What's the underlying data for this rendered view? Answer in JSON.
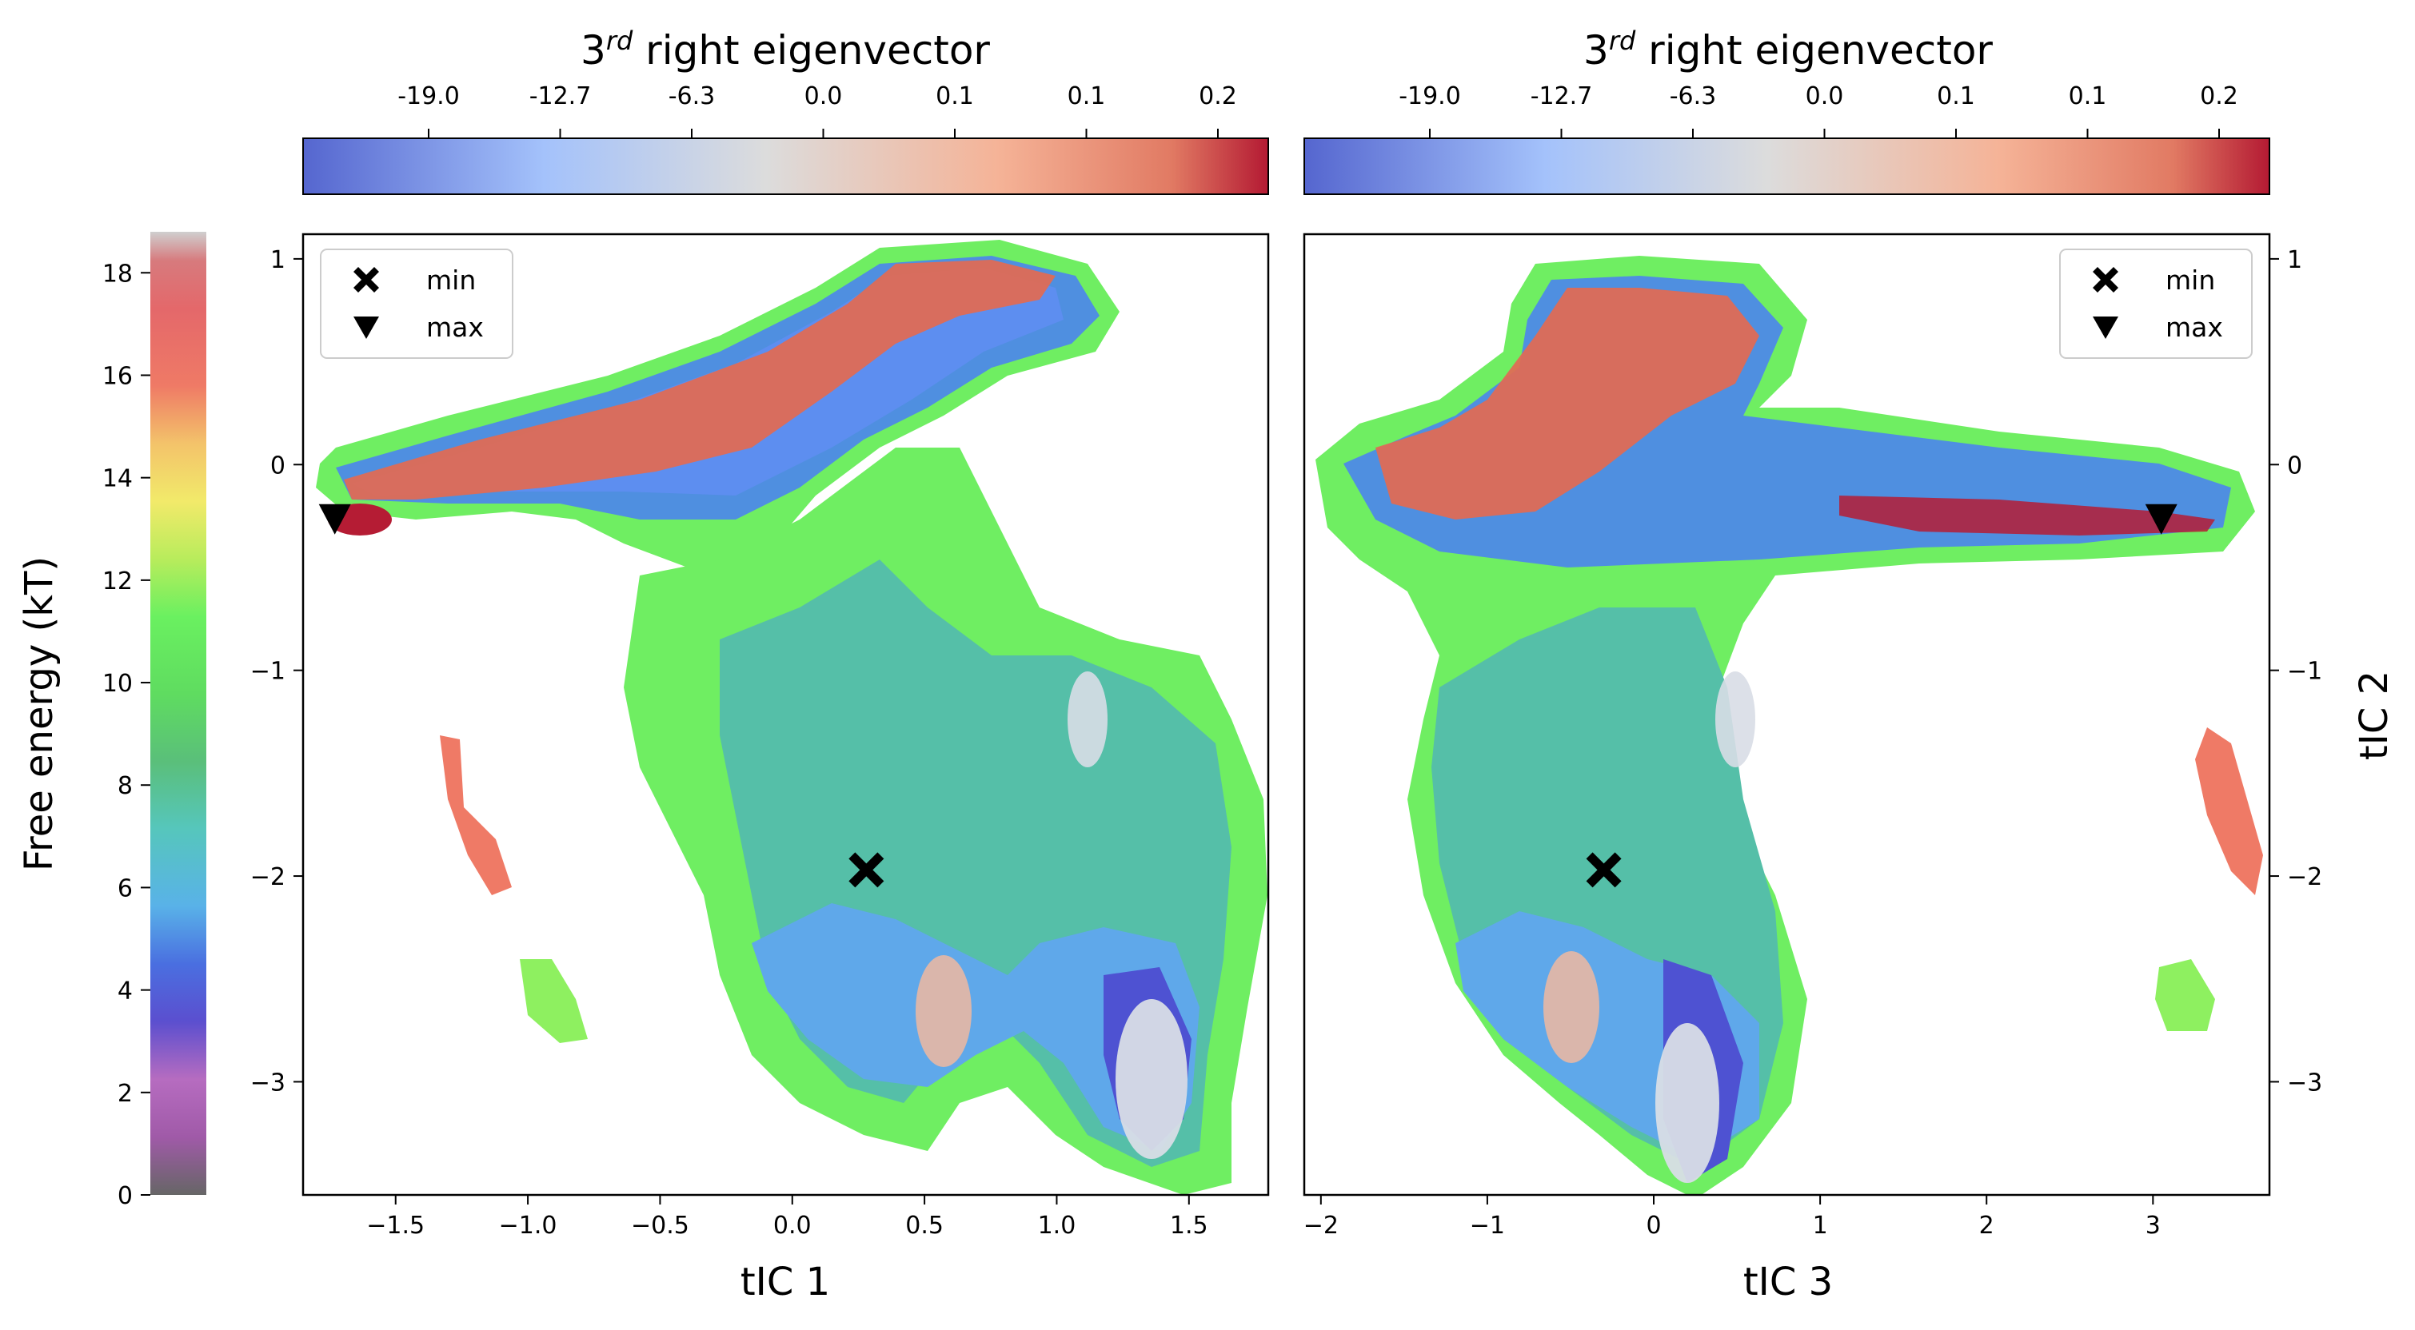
{
  "figure": {
    "free_energy_label": "Free energy (kT)",
    "free_energy_ticks": [
      "0",
      "2",
      "4",
      "6",
      "8",
      "10",
      "12",
      "14",
      "16",
      "18"
    ],
    "eigen_colorbar": {
      "title_prefix": "3",
      "title_sup": "rd",
      "title_suffix": " right eigenvector",
      "ticks": [
        "-19.0",
        "-12.7",
        "-6.3",
        "0.0",
        "0.1",
        "0.1",
        "0.2"
      ]
    },
    "legend": {
      "min_label": "min",
      "max_label": "max"
    }
  },
  "chart_data": [
    {
      "type": "contour",
      "panel": "left",
      "xlabel": "tIC 1",
      "ylabel": "",
      "xlim": [
        -1.85,
        1.8
      ],
      "ylim": [
        -3.55,
        1.12
      ],
      "xticks": [
        "−1.5",
        "−1.0",
        "−0.5",
        "0.0",
        "0.5",
        "1.0",
        "1.5"
      ],
      "xtick_values": [
        -1.5,
        -1.0,
        -0.5,
        0.0,
        0.5,
        1.0,
        1.5
      ],
      "yticks": [
        "1",
        "0",
        "−1",
        "−2",
        "−3"
      ],
      "ytick_values": [
        1,
        0,
        -1,
        -2,
        -3
      ],
      "markers": [
        {
          "label": "min",
          "x": 0.28,
          "y": -1.97
        },
        {
          "label": "max",
          "x": -1.73,
          "y": -0.27
        }
      ],
      "legend_position": "upper left"
    },
    {
      "type": "contour",
      "panel": "right",
      "xlabel": "tIC 3",
      "ylabel": "tIC 2",
      "xlim": [
        -2.1,
        3.7
      ],
      "ylim": [
        -3.55,
        1.12
      ],
      "xticks": [
        "−2",
        "−1",
        "0",
        "1",
        "2",
        "3"
      ],
      "xtick_values": [
        -2,
        -1,
        0,
        1,
        2,
        3
      ],
      "yticks": [
        "1",
        "0",
        "−1",
        "−2",
        "−3"
      ],
      "ytick_values": [
        1,
        0,
        -1,
        -2,
        -3
      ],
      "markers": [
        {
          "label": "min",
          "x": -0.3,
          "y": -1.97
        },
        {
          "label": "max",
          "x": 3.05,
          "y": -0.27
        }
      ],
      "legend_position": "upper right"
    }
  ]
}
